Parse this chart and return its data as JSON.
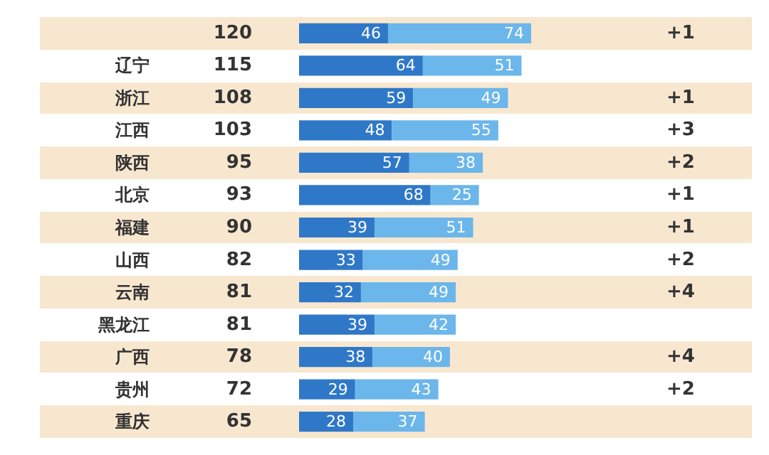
{
  "chart_data": {
    "type": "bar",
    "orientation": "horizontal",
    "stacked": true,
    "data_labels": true,
    "tick_labels": "y",
    "categories": [
      null,
      "辽宁",
      "浙江",
      "江西",
      "陕西",
      "北京",
      "福建",
      "山西",
      "云南",
      "黑龙江",
      "广西",
      "贵州",
      "重庆"
    ],
    "series": [
      {
        "color": "#2f78c8",
        "values": [
          46,
          64,
          59,
          48,
          57,
          68,
          39,
          33,
          32,
          39,
          38,
          29,
          28
        ]
      },
      {
        "color": "#6bb6ea",
        "values": [
          74,
          51,
          49,
          55,
          38,
          25,
          51,
          49,
          49,
          42,
          40,
          43,
          37
        ]
      }
    ],
    "totals": [
      "120",
      "115",
      "108",
      "103",
      "95",
      "93",
      "90",
      "82",
      "81",
      "81",
      "78",
      "72",
      "65"
    ],
    "annotations": [
      "+1",
      null,
      "+1",
      "+3",
      "+2",
      "+1",
      "+1",
      "+2",
      "+4",
      null,
      "+4",
      "+2",
      null
    ]
  }
}
